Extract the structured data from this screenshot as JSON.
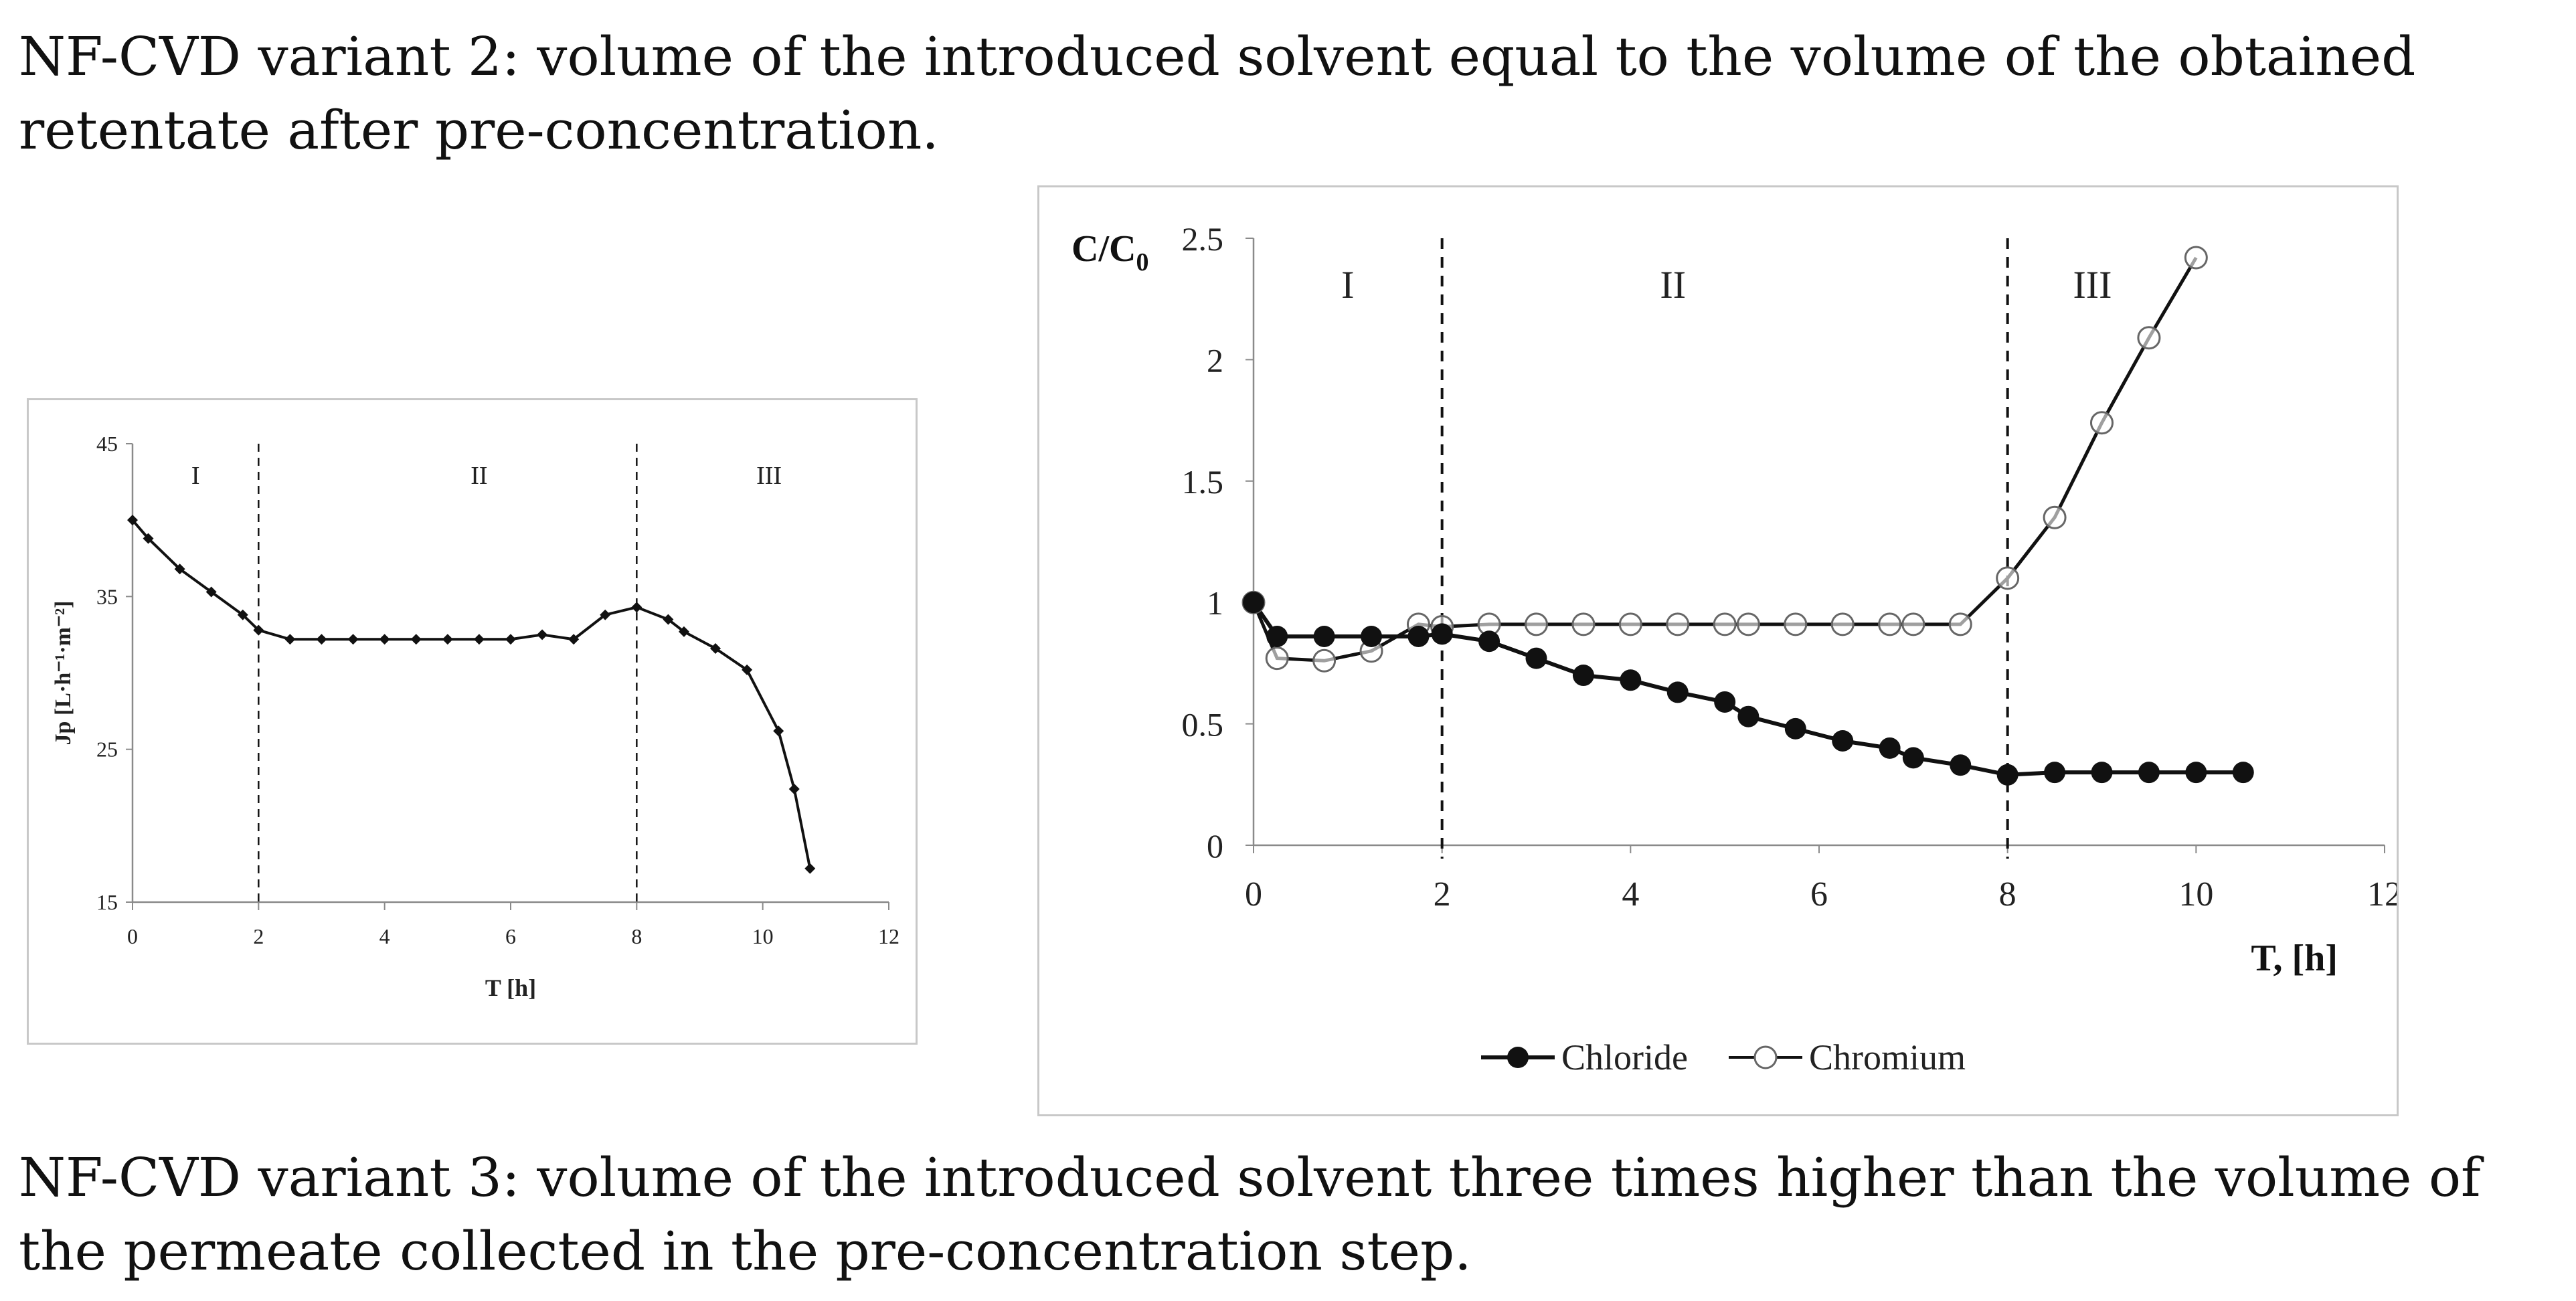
{
  "text": {
    "top_paragraph": "NF-CVD variant 2: volume of the introduced solvent equal to the volume of the obtained retentate after pre-concentration.",
    "bottom_paragraph": "NF-CVD variant 3: volume of the introduced solvent three times higher than the volume of the permeate collected in the pre-concentration step."
  },
  "colors": {
    "line": "#111111",
    "frame": "#c8c8c8",
    "axis": "#8a8a8a"
  },
  "chart_data": [
    {
      "type": "line",
      "title": "",
      "xlabel": "T [h]",
      "ylabel": "Jp [L·h⁻¹·m⁻²]",
      "xlim": [
        0,
        12
      ],
      "ylim": [
        15,
        45
      ],
      "x_ticks": [
        "0",
        "2",
        "4",
        "6",
        "8",
        "10",
        "12"
      ],
      "y_ticks": [
        "15",
        "25",
        "35",
        "45"
      ],
      "region_labels": [
        "I",
        "II",
        "III"
      ],
      "region_dividers": [
        2,
        8
      ],
      "series": [
        {
          "name": "Jp",
          "x": [
            0,
            0.25,
            0.75,
            1.25,
            1.75,
            2,
            2.5,
            3,
            3.5,
            4,
            4.5,
            5,
            5.5,
            6,
            6.5,
            7,
            7.5,
            8,
            8.5,
            8.75,
            9.25,
            9.75,
            10.25,
            10.5,
            10.75
          ],
          "values": [
            40,
            38.8,
            36.8,
            35.3,
            33.8,
            32.8,
            32.2,
            32.2,
            32.2,
            32.2,
            32.2,
            32.2,
            32.2,
            32.2,
            32.5,
            32.2,
            33.8,
            34.3,
            33.5,
            32.7,
            31.6,
            30.2,
            26.2,
            22.4,
            17.2
          ]
        }
      ]
    },
    {
      "type": "line",
      "title": "",
      "xlabel": "T, [h]",
      "ylabel": "C/C",
      "ylabel_sub": "0",
      "xlim": [
        0,
        12
      ],
      "ylim": [
        0,
        2.5
      ],
      "x_ticks": [
        "0",
        "2",
        "4",
        "6",
        "8",
        "10",
        "12"
      ],
      "y_ticks": [
        "0",
        "0.5",
        "1",
        "1.5",
        "2",
        "2.5"
      ],
      "region_labels": [
        "I",
        "II",
        "III"
      ],
      "region_dividers": [
        2,
        8
      ],
      "legend_position": "bottom",
      "series": [
        {
          "name": "Chloride",
          "marker": "filled-circle",
          "x": [
            0,
            0.25,
            0.75,
            1.25,
            1.75,
            2,
            2.5,
            3,
            3.5,
            4,
            4.5,
            5,
            5.25,
            5.75,
            6.25,
            6.75,
            7,
            7.5,
            8,
            8.5,
            9,
            9.5,
            10,
            10.5
          ],
          "values": [
            1.0,
            0.86,
            0.86,
            0.86,
            0.86,
            0.87,
            0.84,
            0.77,
            0.7,
            0.68,
            0.63,
            0.59,
            0.53,
            0.48,
            0.43,
            0.4,
            0.36,
            0.33,
            0.29,
            0.3,
            0.3,
            0.3,
            0.3,
            0.3
          ]
        },
        {
          "name": "Chromium",
          "marker": "open-circle",
          "x": [
            0,
            0.25,
            0.75,
            1.25,
            1.75,
            2,
            2.5,
            3,
            3.5,
            4,
            4.5,
            5,
            5.25,
            5.75,
            6.25,
            6.75,
            7,
            7.5,
            8,
            8.5,
            9,
            9.5,
            10
          ],
          "values": [
            1.0,
            0.77,
            0.76,
            0.8,
            0.91,
            0.9,
            0.91,
            0.91,
            0.91,
            0.91,
            0.91,
            0.91,
            0.91,
            0.91,
            0.91,
            0.91,
            0.91,
            0.91,
            1.1,
            1.35,
            1.74,
            2.09,
            2.42
          ]
        }
      ]
    }
  ]
}
